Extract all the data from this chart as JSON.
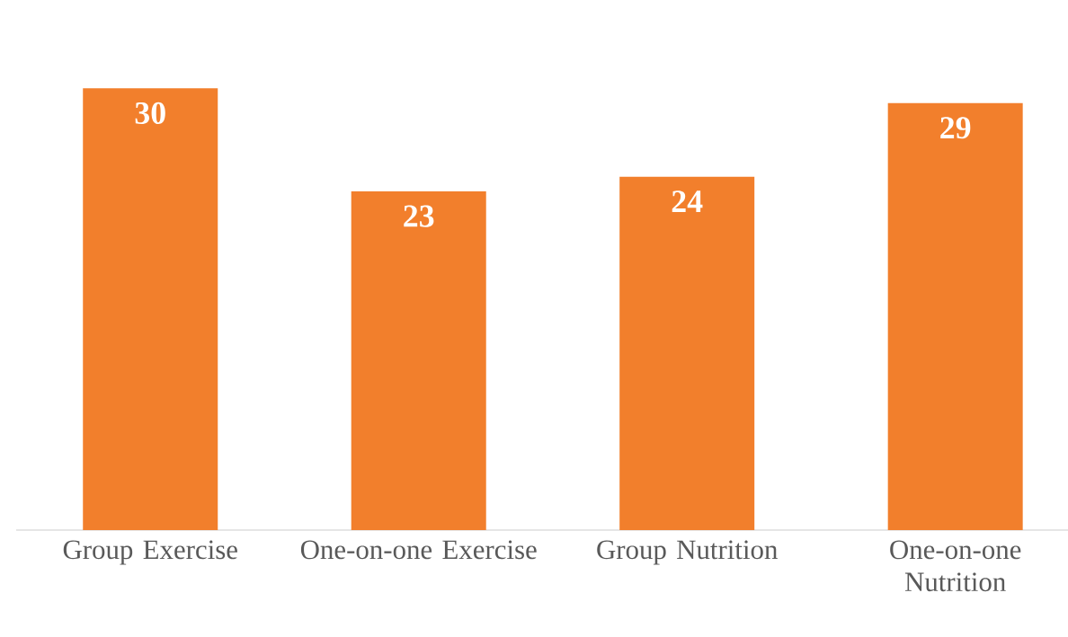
{
  "chart_data": {
    "type": "bar",
    "categories": [
      "Group Exercise",
      "One-on-one Exercise",
      "Group Nutrition",
      "One-on-one Nutrition"
    ],
    "values": [
      30,
      23,
      24,
      29
    ],
    "color": "#f27f2c",
    "data_labels": true
  }
}
